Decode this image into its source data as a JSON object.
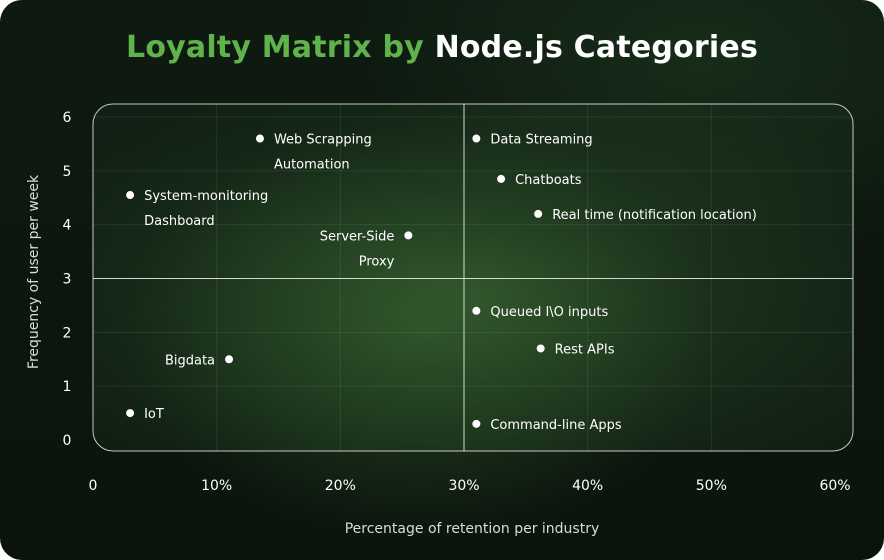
{
  "title_green": "Loyalty Matrix by",
  "title_white": "Node.js Categories",
  "chart_data": {
    "type": "scatter",
    "title": "Loyalty Matrix by Node.js Categories",
    "xlabel": "Percentage of retention per industry",
    "ylabel": "Frequency of user per week",
    "xlim": [
      0,
      60
    ],
    "ylim": [
      0,
      6
    ],
    "x_ticks": [
      "0",
      "10%",
      "20%",
      "30%",
      "40%",
      "50%",
      "60%"
    ],
    "y_ticks": [
      "0",
      "1",
      "2",
      "3",
      "4",
      "5",
      "6"
    ],
    "quadrant_dividers": {
      "x": 30,
      "y": 3
    },
    "grid": true,
    "point_color": "#ffffff",
    "points": [
      {
        "label": [
          "Web Scrapping",
          "Automation"
        ],
        "x": 13.5,
        "y": 5.6,
        "label_side": "right"
      },
      {
        "label": [
          "System-monitoring",
          "Dashboard"
        ],
        "x": 3,
        "y": 4.55,
        "label_side": "right"
      },
      {
        "label": [
          "Server-Side",
          "Proxy"
        ],
        "x": 25.5,
        "y": 3.8,
        "label_side": "left"
      },
      {
        "label": [
          "Data Streaming"
        ],
        "x": 31,
        "y": 5.6,
        "label_side": "right"
      },
      {
        "label": [
          "Chatboats"
        ],
        "x": 33,
        "y": 4.85,
        "label_side": "right"
      },
      {
        "label": [
          "Real time (notification location)"
        ],
        "x": 36,
        "y": 4.2,
        "label_side": "right"
      },
      {
        "label": [
          "Queued I\\O inputs"
        ],
        "x": 31,
        "y": 2.4,
        "label_side": "right"
      },
      {
        "label": [
          "Rest APIs"
        ],
        "x": 36.2,
        "y": 1.7,
        "label_side": "right"
      },
      {
        "label": [
          "Bigdata"
        ],
        "x": 11,
        "y": 1.5,
        "label_side": "left"
      },
      {
        "label": [
          "IoT"
        ],
        "x": 3,
        "y": 0.5,
        "label_side": "right"
      },
      {
        "label": [
          "Command-line Apps"
        ],
        "x": 31,
        "y": 0.3,
        "label_side": "right"
      }
    ]
  }
}
